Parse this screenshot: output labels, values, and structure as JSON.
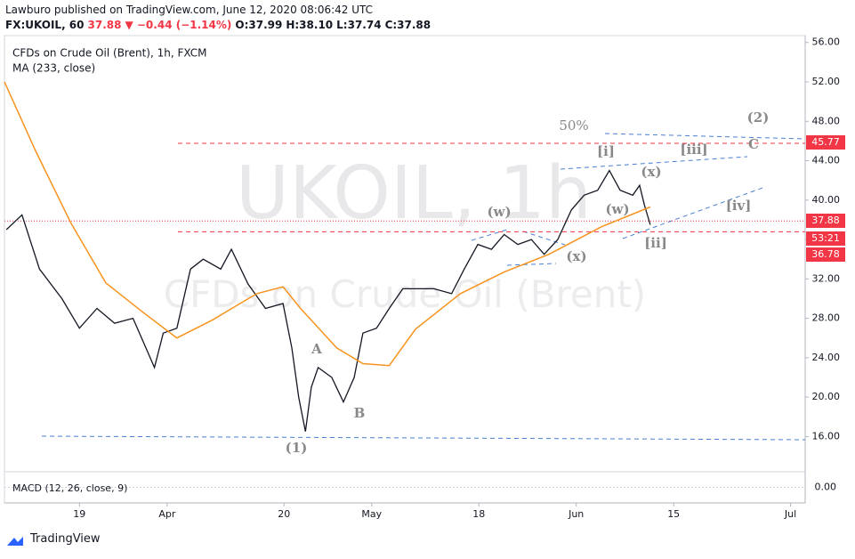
{
  "header": {
    "publisher": "Lawburo published on TradingView.com, June 12, 2020 08:06:42 UTC",
    "symbol": "FX:UKOIL, 60",
    "last": "37.88",
    "change": "▼ −0.44 (−1.14%)",
    "open": "O:37.99",
    "high": "H:38.10",
    "low": "L:37.74",
    "close": "C:37.88"
  },
  "footer": {
    "brand": "TradingView"
  },
  "chart_data": {
    "type": "line",
    "watermark": "UKOIL, 1h",
    "watermark_sub": "CFDs on Crude Oil (Brent)",
    "xlim": [
      -0.7,
      81.5
    ],
    "ylim": [
      12.6,
      56.7
    ],
    "xticks": [
      {
        "value": 7,
        "label": "19"
      },
      {
        "value": 16,
        "label": "Apr"
      },
      {
        "value": 28,
        "label": "20"
      },
      {
        "value": 37,
        "label": "May"
      },
      {
        "value": 48,
        "label": "18"
      },
      {
        "value": 58,
        "label": "Jun"
      },
      {
        "value": 68,
        "label": "15"
      },
      {
        "value": 80,
        "label": "Jul"
      }
    ],
    "yticks": [
      {
        "value": 16,
        "label": "16.00"
      },
      {
        "value": 20,
        "label": "20.00"
      },
      {
        "value": 24,
        "label": "24.00"
      },
      {
        "value": 28,
        "label": "28.00"
      },
      {
        "value": 32,
        "label": "32.00"
      },
      {
        "value": 36,
        "label": "36.00"
      },
      {
        "value": 40,
        "label": "40.00"
      },
      {
        "value": 44,
        "label": "44.00"
      },
      {
        "value": 48,
        "label": "48.00"
      },
      {
        "value": 52,
        "label": "52.00"
      },
      {
        "value": 56,
        "label": "56.00"
      }
    ],
    "series": [
      {
        "name": "CFDs on Crude Oil (Brent), 1h, FXCM",
        "color": "#131722",
        "x": [
          -0.5,
          1.1,
          2.9,
          5.2,
          7,
          8.8,
          10.6,
          12.5,
          14.7,
          15.6,
          17,
          18.4,
          19.7,
          21.5,
          22.6,
          24.3,
          26.1,
          27.9,
          28.8,
          29.5,
          30.2,
          30.8,
          31.5,
          32.9,
          34.1,
          35.2,
          36.1,
          37.5,
          38.8,
          40.2,
          41.5,
          43.4,
          45.2,
          46.5,
          47.9,
          49.3,
          50.6,
          52,
          53.4,
          54.7,
          56.1,
          57.5,
          58.8,
          60.2,
          61.4,
          62.5,
          63.8,
          64.5,
          65,
          65.6
        ],
        "values": [
          37,
          38.5,
          33,
          30,
          27,
          29,
          27.5,
          28,
          23,
          26.5,
          27,
          33,
          34,
          33,
          35,
          31.5,
          29,
          29.5,
          25,
          20,
          16.5,
          21,
          23,
          22,
          19.5,
          22,
          26.5,
          27,
          29,
          31,
          31,
          31,
          30.5,
          33,
          35.5,
          35,
          36.5,
          35.5,
          36,
          34.5,
          36,
          39,
          40.5,
          41,
          43,
          41,
          40.5,
          41.5,
          39.5,
          37.5
        ]
      },
      {
        "name": "MA (233, close)",
        "color": "#f7931e",
        "x": [
          -0.7,
          2.5,
          6.1,
          9.7,
          13.4,
          17,
          20.6,
          25.2,
          27.9,
          29.7,
          33.4,
          36.1,
          38.8,
          41.5,
          46.1,
          50.6,
          55.2,
          60.6,
          65.6
        ],
        "values": [
          52,
          45,
          37.7,
          31.6,
          28.7,
          26,
          27.8,
          30.5,
          31.2,
          29,
          25,
          23.4,
          23.2,
          26.9,
          30.5,
          32.7,
          34.5,
          37.3,
          39.3
        ]
      }
    ],
    "levels": [
      {
        "value": 45.77,
        "label": "45.77",
        "color": "#f23645"
      },
      {
        "value": 37.88,
        "label": "37.88",
        "color": "#f23645"
      },
      {
        "value": 36.78,
        "label": "36.78",
        "color": "#f23645"
      }
    ],
    "countdown": "53:21",
    "annotations": [
      "(1)",
      "A",
      "B",
      "(w)",
      "(x)",
      "[i]",
      "(x)",
      "(w)",
      "[ii]",
      "[iii]",
      "[iv]",
      "C",
      "(2)",
      "50%"
    ],
    "macd": {
      "title": "MACD (12, 26, close, 9)",
      "ylim": [
        -1.5,
        1.5
      ],
      "yticks": [
        {
          "value": 0,
          "label": "0.00"
        }
      ]
    }
  }
}
